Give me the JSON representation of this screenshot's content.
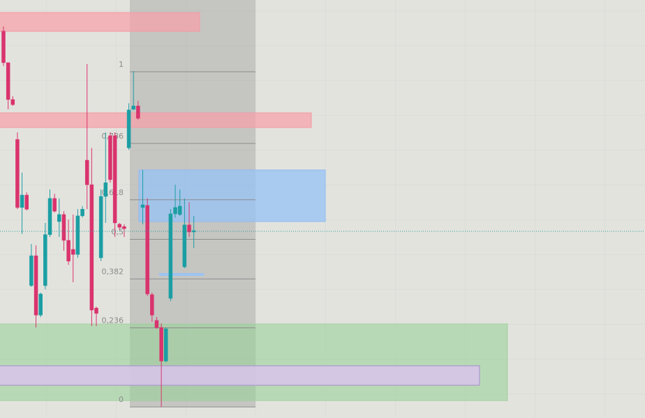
{
  "chart_data": {
    "type": "candlestick",
    "ylim": [
      -0.033,
      1.214
    ],
    "yticks": [
      0,
      {
        "value": 0.236,
        "label": "0,236"
      },
      {
        "value": 0.382,
        "label": "0,382"
      },
      {
        "value": 0.5,
        "label": "0,5"
      },
      {
        "value": 0.618,
        "label": "0,618"
      },
      {
        "value": 0.786,
        "label": "0,786"
      },
      1
    ],
    "up_color": "#1b9ea3",
    "down_color": "#d9336d",
    "price_line": 0.524,
    "price_line_color": "#2a9d9a",
    "open": [
      1.121,
      1.027,
      0.917,
      0.798,
      0.595,
      0.632,
      0.362,
      0.451,
      0.274,
      0.362,
      0.514,
      0.622,
      0.553,
      0.574,
      0.497,
      0.47,
      0.455,
      0.57,
      0.736,
      0.663,
      0.295,
      0.445,
      0.628,
      0.809,
      0.809,
      0.545,
      0.538,
      0.773,
      0.888,
      0.898,
      0.595,
      0.601,
      0.335,
      0.258,
      0.237,
      0.137,
      0.324,
      0.576,
      0.574,
      0.418,
      0.543,
      0.522
    ],
    "high": [
      1.135,
      1.027,
      0.927,
      0.819,
      0.699,
      0.64,
      0.486,
      0.482,
      0.341,
      0.549,
      0.649,
      0.636,
      0.622,
      0.584,
      0.559,
      0.574,
      0.59,
      0.599,
      1.023,
      0.773,
      0.299,
      0.649,
      0.819,
      0.819,
      0.819,
      0.549,
      0.545,
      0.906,
      1.002,
      0.913,
      0.707,
      0.622,
      0.341,
      0.268,
      0.249,
      0.237,
      0.59,
      0.663,
      0.649,
      0.622,
      0.611,
      0.57
    ],
    "low": [
      1.017,
      0.888,
      0.898,
      0.59,
      0.516,
      0.586,
      0.358,
      0.237,
      0.268,
      0.351,
      0.507,
      0.58,
      0.507,
      0.466,
      0.424,
      0.372,
      0.445,
      0.565,
      0.59,
      0.241,
      0.241,
      0.435,
      0.549,
      0.669,
      0.507,
      0.528,
      0.507,
      0.767,
      0.886,
      0.857,
      0.545,
      0.331,
      0.254,
      0.233,
      0,
      0.133,
      0.316,
      0.565,
      0.57,
      0.414,
      0.507,
      0.474
    ],
    "close": [
      1.027,
      0.917,
      0.902,
      0.595,
      0.632,
      0.59,
      0.451,
      0.274,
      0.337,
      0.514,
      0.622,
      0.584,
      0.574,
      0.497,
      0.435,
      0.455,
      0.57,
      0.59,
      0.663,
      0.289,
      0.279,
      0.628,
      0.669,
      0.678,
      0.549,
      0.536,
      0.532,
      0.886,
      0.898,
      0.861,
      0.603,
      0.337,
      0.274,
      0.237,
      0.137,
      0.233,
      0.576,
      0.595,
      0.599,
      0.543,
      0.522,
      0.526
    ]
  }
}
